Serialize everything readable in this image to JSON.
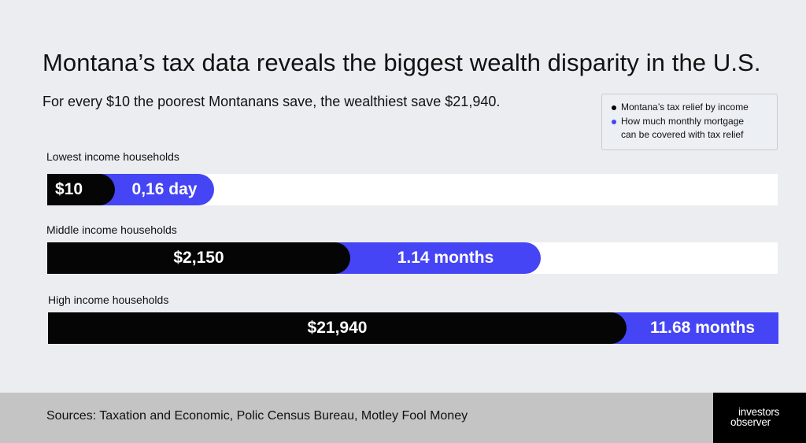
{
  "title": "Montana’s tax data reveals the biggest wealth disparity in the U.S.",
  "subtitle": "For every $10 the poorest Montanans save, the wealthiest save $21,940.",
  "legend": {
    "items": [
      {
        "label_lines": [
          "Montana’s tax relief by income"
        ],
        "color": "#050505"
      },
      {
        "label_lines": [
          "How much monthly mortgage",
          "can be covered with tax relief"
        ],
        "color": "#4545f5"
      }
    ]
  },
  "colors": {
    "black_series": "#050505",
    "blue_series": "#4545f5",
    "track": "#ffffff"
  },
  "chart_data": {
    "type": "bar",
    "orientation": "horizontal",
    "categories": [
      "Lowest income households",
      "Middle income households",
      "High income households"
    ],
    "series": [
      {
        "name": "Montana’s tax relief by income",
        "values": [
          10,
          2150,
          21940
        ],
        "labels": [
          "$10",
          "$2,150",
          "$21,940"
        ]
      },
      {
        "name": "How much monthly mortgage can be covered with tax relief",
        "values": [
          0.16,
          1.14,
          11.68
        ],
        "labels": [
          "0,16 day",
          "1.14 months",
          "11.68 months"
        ],
        "units": [
          "day",
          "months",
          "months"
        ]
      }
    ],
    "stacked": true,
    "legend_position": "top-right",
    "grid": false
  },
  "footer": {
    "sources": "Sources: Taxation and Economic, Polic Census Bureau, Motley Fool Money"
  },
  "logo": {
    "line1": "investors",
    "line2": "observer"
  }
}
